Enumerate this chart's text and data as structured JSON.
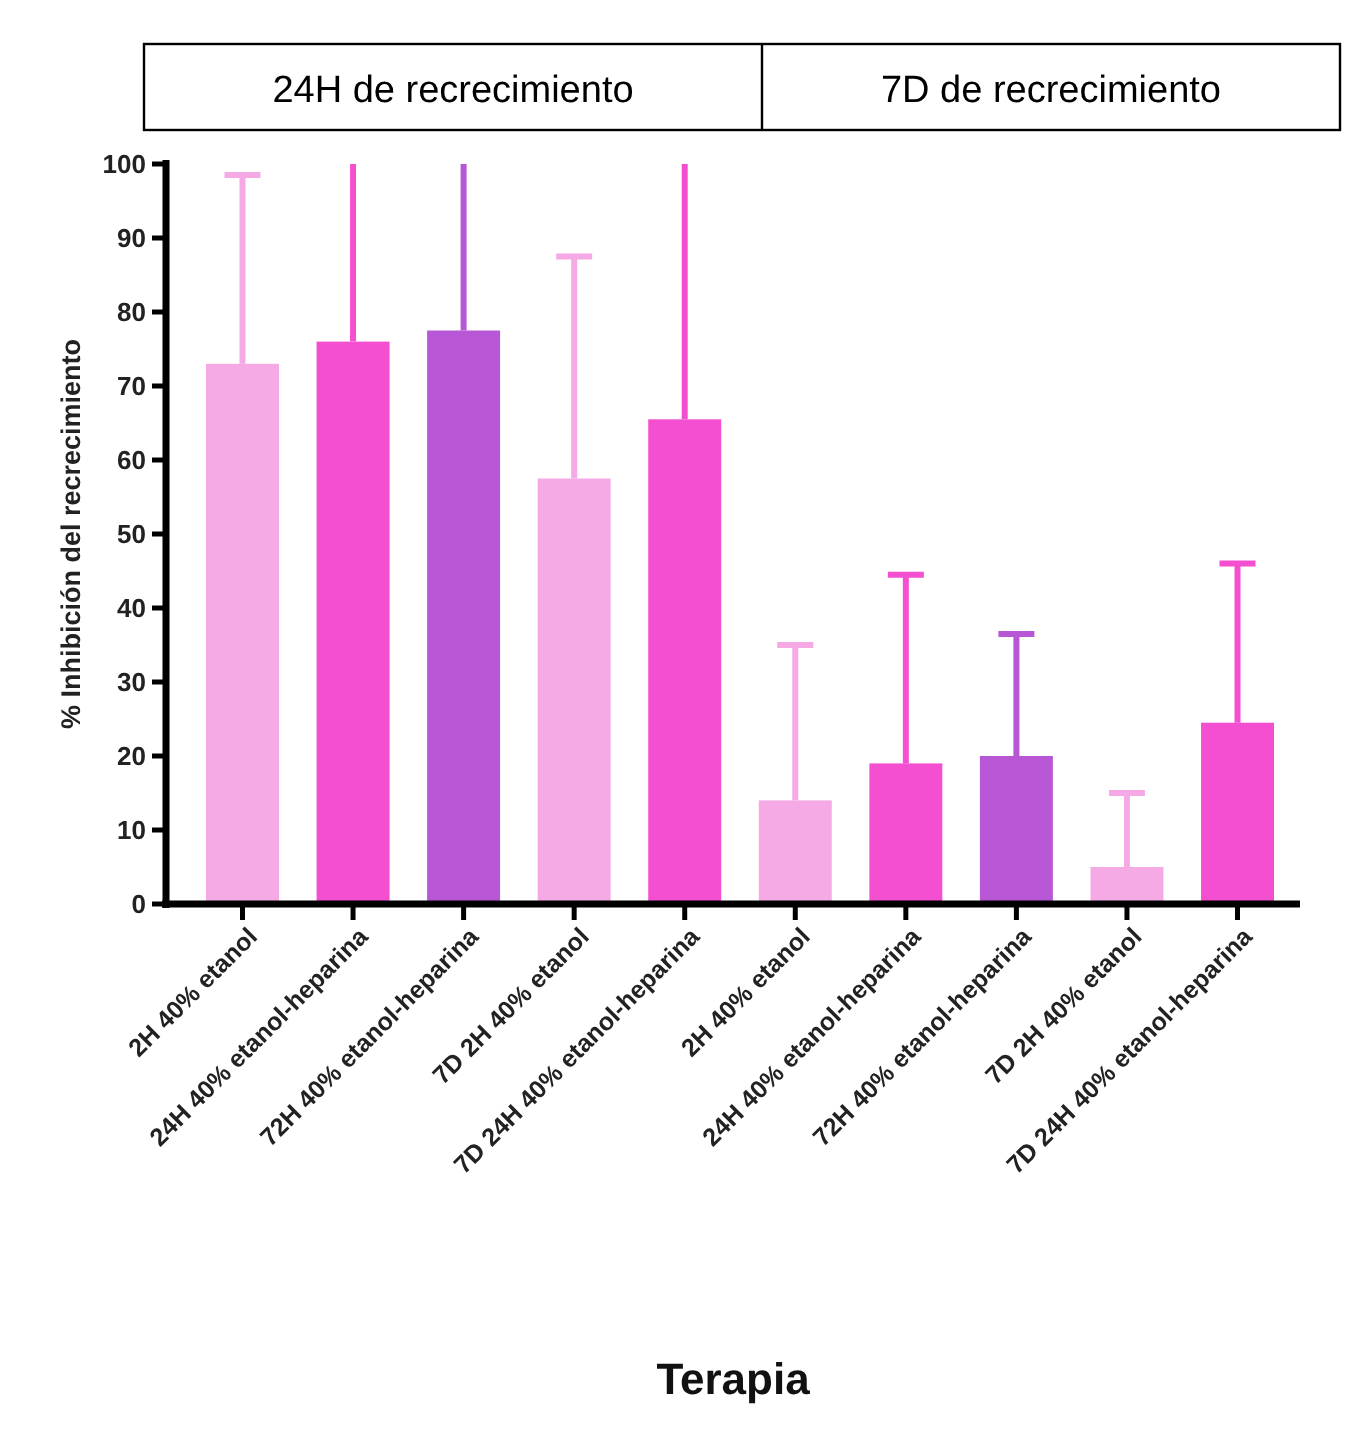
{
  "chart_data": {
    "type": "bar",
    "xlabel": "Terapia",
    "ylabel": "% Inhibición del recrecimiento",
    "annotations": [
      "24H de recrecimiento",
      "7D de recrecimiento"
    ],
    "categories": [
      "2H 40% etanol",
      "24H 40% etanol-heparina",
      "72H 40% etanol-heparina",
      "7D 2H 40% etanol",
      "7D 24H 40% etanol-heparina",
      "2H 40% etanol",
      "24H 40% etanol-heparina",
      "72H 40% etanol-heparina",
      "7D 2H 40% etanol",
      "7D 24H 40% etanol-heparina"
    ],
    "values": [
      73,
      76,
      77.5,
      57.5,
      65.5,
      14,
      19,
      20,
      5,
      24.5
    ],
    "colors": [
      "#f5aae6",
      "#f54fd1",
      "#b857d6",
      "#f5aae6",
      "#f54fd1",
      "#f5aae6",
      "#f54fd1",
      "#b857d6",
      "#f5aae6",
      "#f54fd1"
    ],
    "errors": [
      [
        73,
        98.5
      ],
      [
        76,
        100
      ],
      [
        77.5,
        100
      ],
      [
        57.5,
        87.5
      ],
      [
        65.5,
        100
      ],
      [
        14,
        35
      ],
      [
        19,
        44.5
      ],
      [
        20,
        36.5
      ],
      [
        5,
        15
      ],
      [
        24.5,
        46
      ]
    ],
    "ylim": [
      0,
      100
    ],
    "yticks": [
      0,
      10,
      20,
      30,
      40,
      50,
      60,
      70,
      80,
      90,
      100
    ],
    "grid": false
  }
}
